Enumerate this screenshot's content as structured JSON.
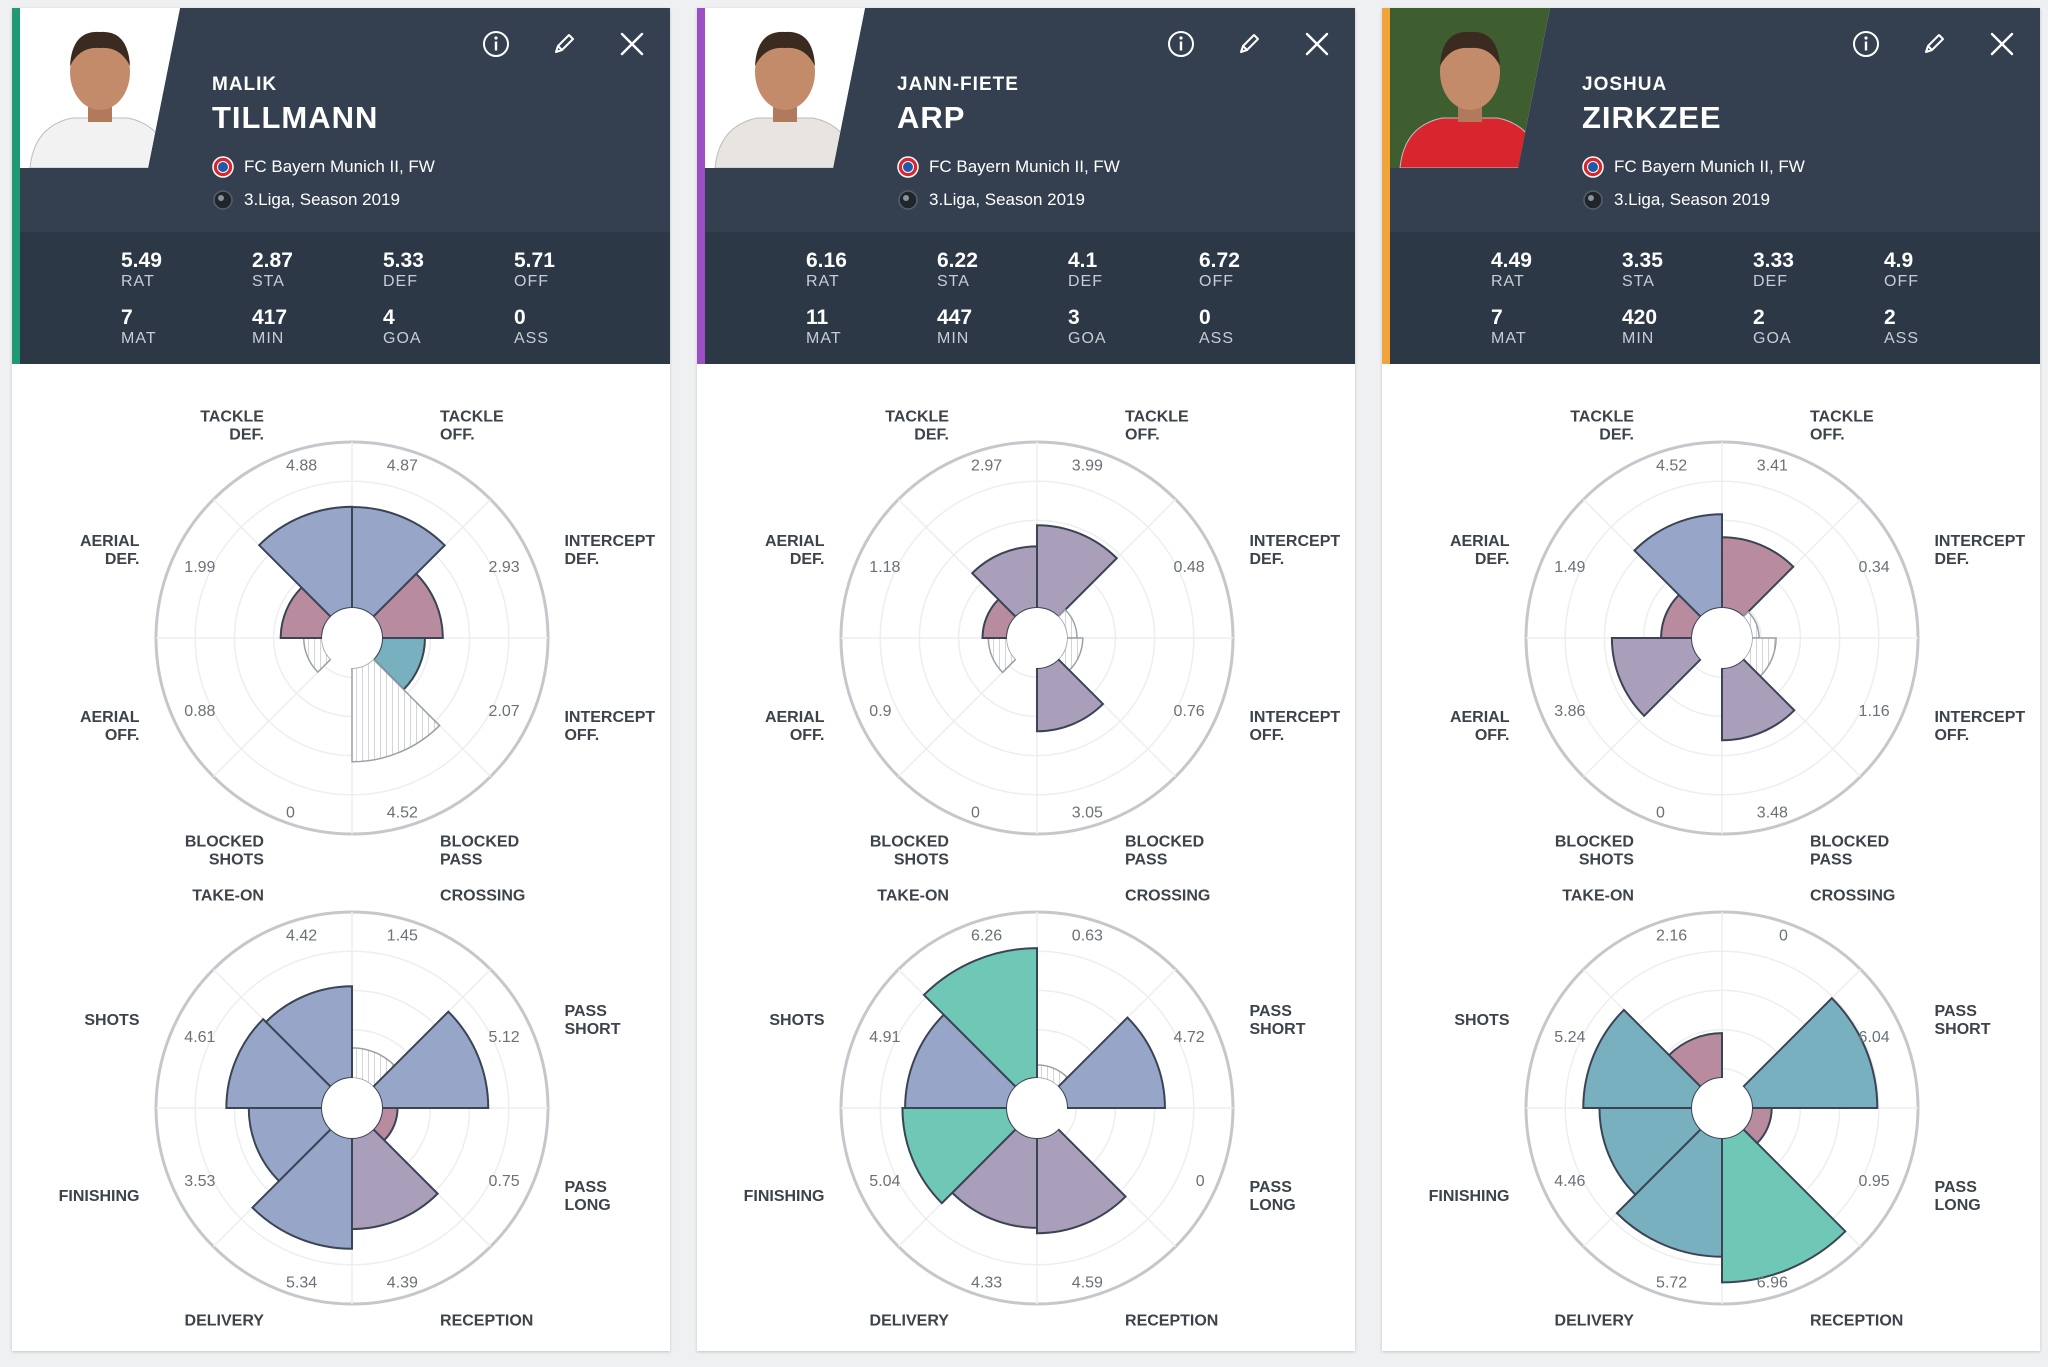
{
  "colors": {
    "header_bg": "#34404f",
    "stats_bg": "#2d3847",
    "blue_slice": "#8c9cc2",
    "red_slice": "#b07f93",
    "teal_slice": "#6aa7b8",
    "green_slice": "#5fc2ad",
    "purple_slice": "#a195b4"
  },
  "icons": {
    "info": "info-icon",
    "edit": "pencil-icon",
    "close": "close-icon",
    "club": "bayern-logo-icon",
    "league": "league-ball-icon"
  },
  "stat_labels": [
    "RAT",
    "STA",
    "DEF",
    "OFF",
    "MAT",
    "MIN",
    "GOA",
    "ASS"
  ],
  "radar_defense": {
    "axes": [
      "TACKLE OFF.",
      "INTERCEPT DEF.",
      "INTERCEPT OFF.",
      "BLOCKED PASS",
      "BLOCKED SHOTS",
      "AERIAL OFF.",
      "AERIAL DEF.",
      "TACKLE DEF."
    ],
    "max": 8
  },
  "radar_offense": {
    "axes": [
      "CROSSING",
      "PASS SHORT",
      "PASS LONG",
      "RECEPTION",
      "DELIVERY",
      "FINISHING",
      "SHOTS",
      "TAKE-ON"
    ],
    "max": 8
  },
  "players": [
    {
      "first_name": "MALIK",
      "last_name": "TILLMANN",
      "accent": "#1f9a74",
      "club": "FC Bayern Munich II, FW",
      "league": "3.Liga, Season 2019",
      "photo_shirt": "#f2f2f2",
      "photo_bg": "#ffffff",
      "stats": [
        "5.49",
        "2.87",
        "5.33",
        "5.71",
        "7",
        "417",
        "4",
        "0"
      ],
      "defense": {
        "values": [
          "4.87",
          "2.93",
          "2.07",
          "4.52",
          "0",
          "0.88",
          "1.99",
          "4.88"
        ],
        "fills": [
          "blue",
          "red",
          "teal",
          "hatch",
          "hatch",
          "hatch",
          "red",
          "blue"
        ]
      },
      "offense": {
        "values": [
          "1.45",
          "5.12",
          "0.75",
          "4.39",
          "5.34",
          "3.53",
          "4.61",
          "4.42"
        ],
        "fills": [
          "hatch",
          "blue",
          "red",
          "purple",
          "blue",
          "blue",
          "blue",
          "blue"
        ]
      }
    },
    {
      "first_name": "JANN-FIETE",
      "last_name": "ARP",
      "accent": "#9b4fc4",
      "club": "FC Bayern Munich II, FW",
      "league": "3.Liga, Season 2019",
      "photo_shirt": "#e8e4e0",
      "photo_bg": "#ffffff",
      "stats": [
        "6.16",
        "6.22",
        "4.1",
        "6.72",
        "11",
        "447",
        "3",
        "0"
      ],
      "defense": {
        "values": [
          "3.99",
          "0.48",
          "0.76",
          "3.05",
          "0",
          "0.9",
          "1.18",
          "2.97"
        ],
        "fills": [
          "purple",
          "hatch",
          "hatch",
          "purple",
          "hatch",
          "hatch",
          "red",
          "purple"
        ]
      },
      "offense": {
        "values": [
          "0.63",
          "4.72",
          "0",
          "4.59",
          "4.33",
          "5.04",
          "4.91",
          "6.26"
        ],
        "fills": [
          "hatch",
          "blue",
          "hatch",
          "purple",
          "purple",
          "green",
          "blue",
          "green"
        ]
      }
    },
    {
      "first_name": "JOSHUA",
      "last_name": "ZIRKZEE",
      "accent": "#f0a43a",
      "club": "FC Bayern Munich II, FW",
      "league": "3.Liga, Season 2019",
      "photo_shirt": "#d9262e",
      "photo_bg": "#3f5e2f",
      "stats": [
        "4.49",
        "3.35",
        "3.33",
        "4.9",
        "7",
        "420",
        "2",
        "2"
      ],
      "defense": {
        "values": [
          "3.41",
          "0.34",
          "1.16",
          "3.48",
          "0",
          "3.86",
          "1.49",
          "4.52"
        ],
        "fills": [
          "red",
          "hatch",
          "hatch",
          "purple",
          "hatch",
          "purple",
          "red",
          "blue"
        ]
      },
      "offense": {
        "values": [
          "0",
          "6.04",
          "0.95",
          "6.96",
          "5.72",
          "4.46",
          "5.24",
          "2.16"
        ],
        "fills": [
          "hatch",
          "teal",
          "red",
          "green",
          "teal",
          "teal",
          "teal",
          "red"
        ]
      }
    }
  ]
}
